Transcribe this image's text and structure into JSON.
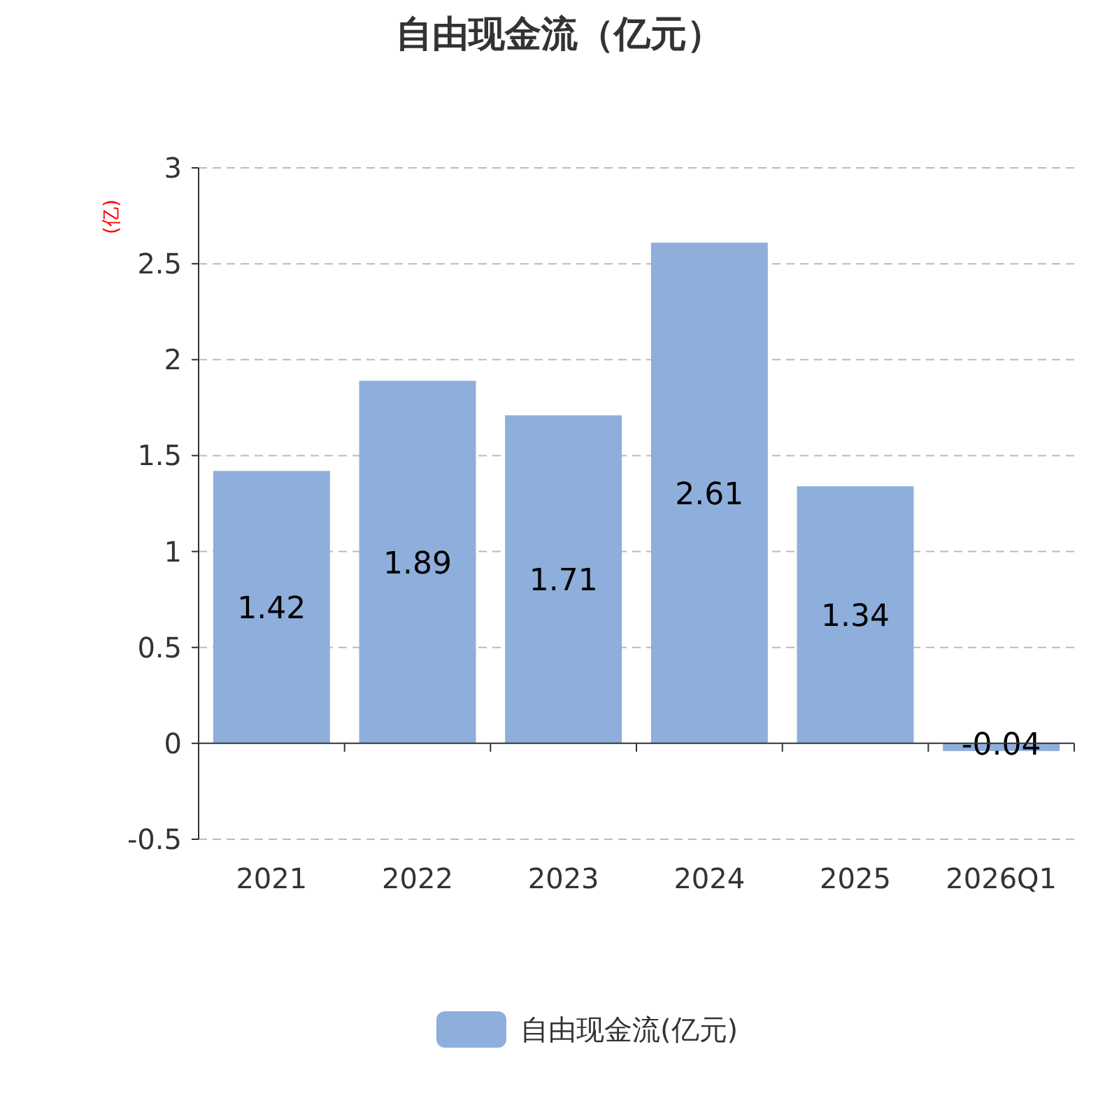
{
  "chart_data": {
    "type": "bar",
    "title": "自由现金流（亿元）",
    "ylabel": "(亿)",
    "categories": [
      "2021",
      "2022",
      "2023",
      "2024",
      "2025",
      "2026Q1"
    ],
    "series": [
      {
        "name": "自由现金流(亿元)",
        "color": "#8eaedb",
        "values": [
          1.42,
          1.89,
          1.71,
          2.61,
          1.34,
          -0.04
        ]
      }
    ],
    "ylim": [
      -0.5,
      3
    ],
    "yticks": [
      -0.5,
      0,
      0.5,
      1,
      1.5,
      2,
      2.5,
      3
    ],
    "grid": "y",
    "legend": "bottom",
    "data_labels": true
  }
}
